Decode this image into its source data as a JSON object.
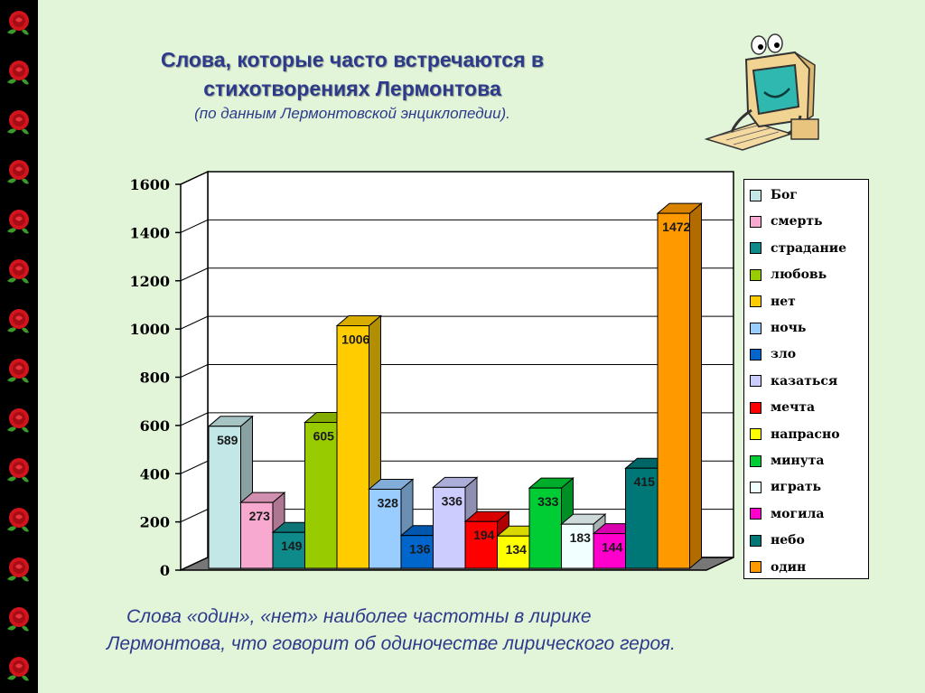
{
  "title": "Слова, которые часто встречаются в стихотворениях Лермонтова",
  "subtitle": "(по данным Лермонтовской энциклопедии).",
  "conclusion_line1": "Слова «один», «нет» наиболее частотны в лирике",
  "conclusion_line2": "Лермонтова, что говорит об одиночестве лирического героя.",
  "icons": {
    "mascot": "computer-mascot-icon",
    "border": "rose-icon"
  },
  "chart_data": {
    "type": "bar",
    "title": "",
    "xlabel": "",
    "ylabel": "",
    "ylim": [
      0,
      1600
    ],
    "yticks": [
      0,
      200,
      400,
      600,
      800,
      1000,
      1200,
      1400,
      1600
    ],
    "grid": true,
    "legend_position": "right",
    "data_labels": true,
    "series": [
      {
        "name": "Бог",
        "value": 589,
        "color": "#c3e6e6"
      },
      {
        "name": "смерть",
        "value": 273,
        "color": "#f7a9cf"
      },
      {
        "name": "страдание",
        "value": 149,
        "color": "#0f8a8a"
      },
      {
        "name": "любовь",
        "value": 605,
        "color": "#99cc00"
      },
      {
        "name": "нет",
        "value": 1006,
        "color": "#ffcc00"
      },
      {
        "name": "ночь",
        "value": 328,
        "color": "#99ccff"
      },
      {
        "name": "зло",
        "value": 136,
        "color": "#0066cc"
      },
      {
        "name": "казаться",
        "value": 336,
        "color": "#ccccff"
      },
      {
        "name": "мечта",
        "value": 194,
        "color": "#ff0000"
      },
      {
        "name": "напрасно",
        "value": 134,
        "color": "#ffff00"
      },
      {
        "name": "минута",
        "value": 333,
        "color": "#00cc33"
      },
      {
        "name": "играть",
        "value": 183,
        "color": "#f2ffff"
      },
      {
        "name": "могила",
        "value": 144,
        "color": "#ff00cc"
      },
      {
        "name": "небо",
        "value": 415,
        "color": "#007777"
      },
      {
        "name": "один",
        "value": 1472,
        "color": "#ff9900"
      }
    ]
  }
}
